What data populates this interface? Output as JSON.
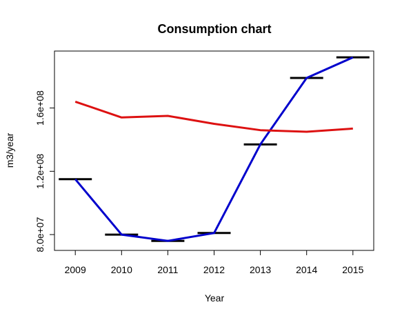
{
  "chart_data": {
    "type": "line",
    "title": "Consumption chart",
    "xlabel": "Year",
    "ylabel": "m3/year",
    "x": [
      2009,
      2010,
      2011,
      2012,
      2013,
      2014,
      2015
    ],
    "x_tick_labels": [
      "2009",
      "2010",
      "2011",
      "2012",
      "2013",
      "2014",
      "2015"
    ],
    "y_ticks": [
      80000000,
      120000000,
      160000000
    ],
    "y_tick_labels": [
      "8.0e+07",
      "1.2e+08",
      "1.6e+08"
    ],
    "xlim": [
      2008.55,
      2015.45
    ],
    "ylim": [
      70000000,
      196000000
    ],
    "grid": false,
    "series": [
      {
        "color": "#0000cc",
        "style": "line",
        "values": [
          115000000,
          80000000,
          76000000,
          81000000,
          137000000,
          179000000,
          192000000
        ]
      },
      {
        "color": "#000000",
        "style": "segments",
        "values": [
          115000000,
          80000000,
          76000000,
          81000000,
          137000000,
          179000000,
          192000000
        ]
      },
      {
        "color": "#dd1111",
        "style": "line",
        "values": [
          164000000,
          154000000,
          155000000,
          150000000,
          146000000,
          145000000,
          147000000
        ]
      }
    ]
  }
}
